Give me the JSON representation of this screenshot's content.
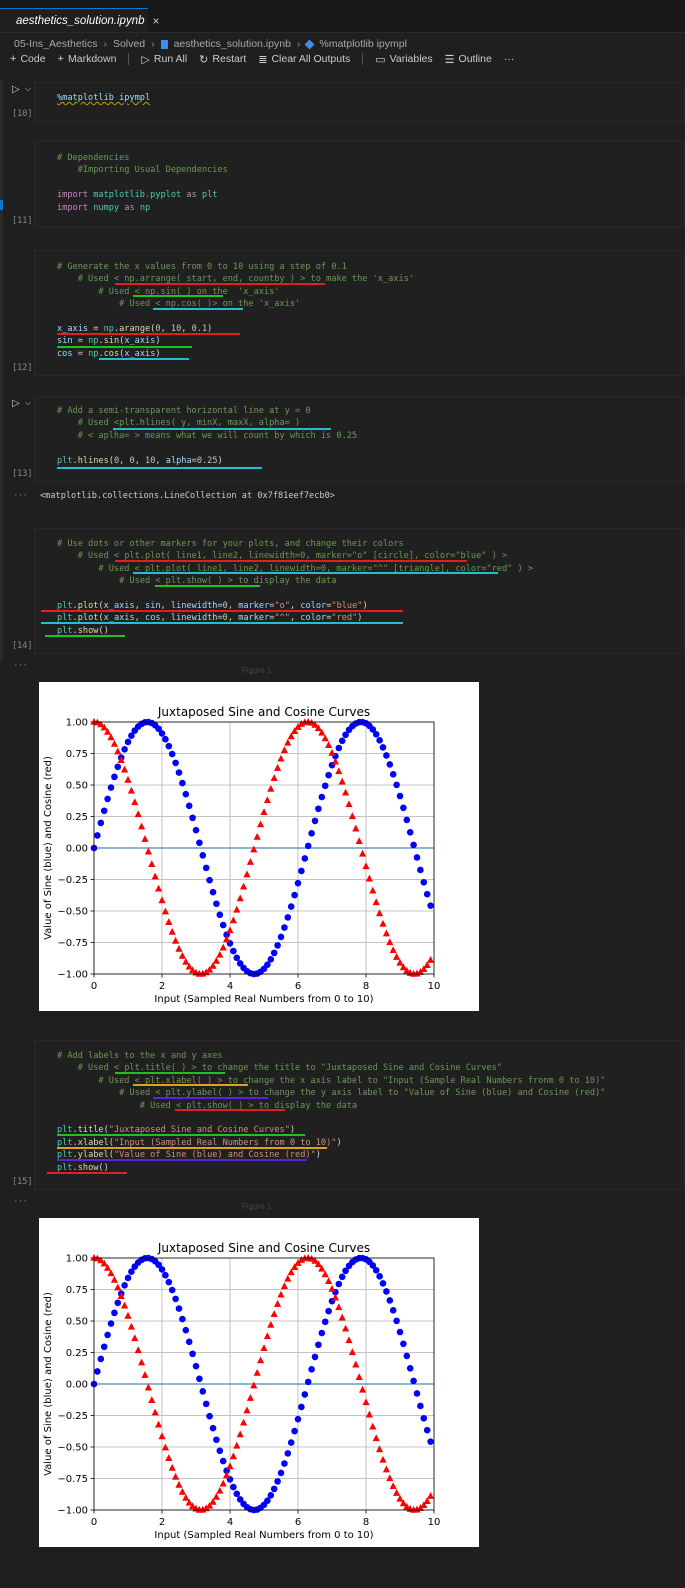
{
  "tab": {
    "title": "aesthetics_solution.ipynb",
    "close": "×"
  },
  "breadcrumb": [
    "05-Ins_Aesthetics",
    "Solved",
    "aesthetics_solution.ipynb",
    "%matplotlib ipympl"
  ],
  "toolbar": {
    "code": "Code",
    "markdown": "Markdown",
    "run_all": "Run All",
    "restart": "Restart",
    "clear_outputs": "Clear All Outputs",
    "variables": "Variables",
    "outline": "Outline",
    "more": "···"
  },
  "cells": {
    "c10": {
      "exec": "[10]",
      "lines": [
        "%matplotlib ipympl"
      ]
    },
    "c11": {
      "exec": "[11]",
      "lines": [
        "# Dependencies",
        "    #Importing Usual Dependencies",
        "",
        "import matplotlib.pyplot as plt",
        "import numpy as np"
      ]
    },
    "c12": {
      "exec": "[12]",
      "lines": [
        "# Generate the x values from 0 to 10 using a step of 0.1",
        "    # Used < np.arrange( start, end, countby ) > to make the 'x_axis'",
        "        # Used < np.sin( ) on the  'x_axis'",
        "            # Used < np.cos( )> on the 'x_axis'",
        "",
        "x_axis = np.arange(0, 10, 0.1)",
        "sin = np.sin(x_axis)",
        "cos = np.cos(x_axis)"
      ]
    },
    "c13": {
      "exec": "[13]",
      "lines": [
        "# Add a semi-transparent horizontal line at y = 0",
        "    # Used <plt.hlines( y, minX, maxX, alpha= )",
        "    # < aplha= > means what we will count by which is 0.25",
        "",
        "plt.hlines(0, 0, 10, alpha=0.25)"
      ],
      "output": "<matplotlib.collections.LineCollection at 0x7f81eef7ecb0>"
    },
    "c14": {
      "exec": "[14]",
      "lines": [
        "# Use dots or other markers for your plots, and change their colors",
        "    # Used < plt.plot( line1, line2, linewidth=0, marker=\"o\" [circle], color=\"blue\" ) >",
        "        # Used < plt.plot( line1, line2, linewidth=0, marker=\"^\" [triangle], color=\"red\" ) >",
        "            # Used < plt.show( ) > to display the data",
        "",
        "plt.plot(x_axis, sin, linewidth=0, marker=\"o\", color=\"blue\")",
        "plt.plot(x_axis, cos, linewidth=0, marker=\"^\", color=\"red\")",
        "plt.show()"
      ],
      "figure_label": "Figure 1"
    },
    "c15": {
      "exec": "[15]",
      "lines": [
        "# Add labels to the x and y axes",
        "    # Used < plt.title( ) > to change the title to \"Juxtaposed Sine and Cosine Curves\"",
        "        # Used < plt.xlabel( ) > to change the x axis label to \"Input (Sample Real Numbers fronm 0 to 10)\"",
        "            # Used < plt.ylabel( ) > to change the y axis label to \"Value of Sine (blue) and Cosine (red)\"",
        "                # Used < plt.show( ) > to display the data",
        "",
        "plt.title(\"Juxtaposed Sine and Cosine Curves\")",
        "plt.xlabel(\"Input (Sampled Real Numbers from 0 to 10)\")",
        "plt.ylabel(\"Value of Sine (blue) and Cosine (red)\")",
        "plt.show()"
      ],
      "figure_label": "Figure 1"
    }
  },
  "ellipsis": "···",
  "chart_data": [
    {
      "type": "scatter",
      "title": "Juxtaposed Sine and Cosine Curves",
      "xlabel": "Input (Sampled Real Numbers from 0 to 10)",
      "ylabel": "Value of Sine (blue) and Cosine (red)",
      "xlim": [
        0,
        10
      ],
      "ylim": [
        -1,
        1
      ],
      "xticks": [
        "0",
        "2",
        "4",
        "6",
        "8",
        "10"
      ],
      "yticks": [
        "1.00",
        "0.75",
        "0.50",
        "0.25",
        "0.00",
        "−0.25",
        "−0.50",
        "−0.75",
        "−1.00"
      ],
      "grid": true,
      "x_start": 0,
      "x_step": 0.1,
      "x_count": 100,
      "series": [
        {
          "function": "sin",
          "marker": "circle",
          "color": "#0000ff"
        },
        {
          "function": "cos",
          "marker": "triangle",
          "color": "#ff0000"
        }
      ],
      "hline": {
        "y": 0,
        "color": "#1f77b4",
        "alpha": 0.25
      }
    },
    {
      "type": "scatter",
      "title": "Juxtaposed Sine and Cosine Curves",
      "xlabel": "Input (Sampled Real Numbers from 0 to 10)",
      "ylabel": "Value of Sine (blue) and Cosine (red)",
      "xlim": [
        0,
        10
      ],
      "ylim": [
        -1,
        1
      ],
      "xticks": [
        "0",
        "2",
        "4",
        "6",
        "8",
        "10"
      ],
      "yticks": [
        "1.00",
        "0.75",
        "0.50",
        "0.25",
        "0.00",
        "−0.25",
        "−0.50",
        "−0.75",
        "−1.00"
      ],
      "grid": true,
      "x_start": 0,
      "x_step": 0.1,
      "x_count": 100,
      "series": [
        {
          "function": "sin",
          "marker": "circle",
          "color": "#0000ff"
        },
        {
          "function": "cos",
          "marker": "triangle",
          "color": "#ff0000"
        }
      ],
      "hline": {
        "y": 0,
        "color": "#1f77b4",
        "alpha": 0.25
      }
    }
  ]
}
